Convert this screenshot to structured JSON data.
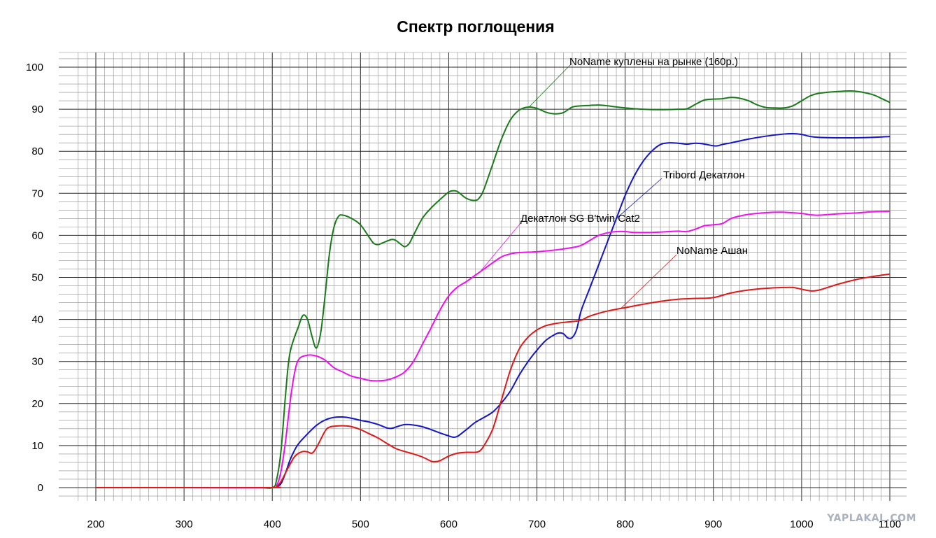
{
  "chart_data": {
    "type": "line",
    "title": "Спектр поглощения",
    "xlabel": "",
    "ylabel": "",
    "xlim": [
      200,
      1100
    ],
    "ylim": [
      0,
      100
    ],
    "grid": true,
    "x_ticks": [
      200,
      300,
      400,
      500,
      600,
      700,
      800,
      900,
      1000,
      1100
    ],
    "y_ticks": [
      0,
      10,
      20,
      30,
      40,
      50,
      60,
      70,
      80,
      90,
      100
    ],
    "series": [
      {
        "name": "NoName куплены на рынке (160р.)",
        "color": "#1a7a1a",
        "points": [
          [
            200,
            0
          ],
          [
            300,
            0
          ],
          [
            380,
            0
          ],
          [
            400,
            0
          ],
          [
            405,
            2
          ],
          [
            410,
            9
          ],
          [
            415,
            22
          ],
          [
            420,
            32
          ],
          [
            430,
            38.5
          ],
          [
            435,
            41
          ],
          [
            440,
            40
          ],
          [
            445,
            36
          ],
          [
            450,
            33.2
          ],
          [
            455,
            37
          ],
          [
            460,
            46
          ],
          [
            465,
            56
          ],
          [
            470,
            62
          ],
          [
            475,
            64.5
          ],
          [
            480,
            64.8
          ],
          [
            490,
            64
          ],
          [
            500,
            62.5
          ],
          [
            510,
            59.5
          ],
          [
            515,
            58.1
          ],
          [
            520,
            57.8
          ],
          [
            525,
            58.2
          ],
          [
            535,
            59
          ],
          [
            540,
            58.8
          ],
          [
            545,
            58
          ],
          [
            550,
            57.3
          ],
          [
            555,
            58
          ],
          [
            560,
            60
          ],
          [
            570,
            64
          ],
          [
            580,
            66.5
          ],
          [
            590,
            68.5
          ],
          [
            600,
            70.3
          ],
          [
            605,
            70.6
          ],
          [
            610,
            70.4
          ],
          [
            620,
            68.8
          ],
          [
            630,
            68.3
          ],
          [
            635,
            69
          ],
          [
            640,
            71
          ],
          [
            650,
            77
          ],
          [
            660,
            83
          ],
          [
            670,
            87.5
          ],
          [
            680,
            89.8
          ],
          [
            690,
            90.5
          ],
          [
            700,
            90.2
          ],
          [
            710,
            89.3
          ],
          [
            720,
            88.9
          ],
          [
            730,
            89.2
          ],
          [
            740,
            90.5
          ],
          [
            750,
            90.8
          ],
          [
            760,
            90.9
          ],
          [
            770,
            91
          ],
          [
            780,
            90.8
          ],
          [
            800,
            90.3
          ],
          [
            820,
            90
          ],
          [
            840,
            89.9
          ],
          [
            860,
            90
          ],
          [
            870,
            90.1
          ],
          [
            880,
            91.2
          ],
          [
            890,
            92.2
          ],
          [
            900,
            92.4
          ],
          [
            910,
            92.5
          ],
          [
            920,
            92.8
          ],
          [
            930,
            92.6
          ],
          [
            940,
            92
          ],
          [
            950,
            91
          ],
          [
            960,
            90.4
          ],
          [
            970,
            90.3
          ],
          [
            980,
            90.3
          ],
          [
            990,
            90.8
          ],
          [
            1000,
            92
          ],
          [
            1010,
            93.2
          ],
          [
            1020,
            93.8
          ],
          [
            1040,
            94.2
          ],
          [
            1060,
            94.3
          ],
          [
            1080,
            93.5
          ],
          [
            1090,
            92.6
          ],
          [
            1100,
            91.6
          ]
        ]
      },
      {
        "name": "Tribord Декатлон",
        "color": "#1414c8",
        "points": [
          [
            200,
            0
          ],
          [
            300,
            0
          ],
          [
            400,
            0
          ],
          [
            405,
            0.2
          ],
          [
            410,
            1
          ],
          [
            415,
            3.5
          ],
          [
            420,
            6.5
          ],
          [
            425,
            8.8
          ],
          [
            430,
            10.5
          ],
          [
            440,
            12.8
          ],
          [
            450,
            14.8
          ],
          [
            460,
            16.1
          ],
          [
            470,
            16.7
          ],
          [
            480,
            16.8
          ],
          [
            490,
            16.5
          ],
          [
            500,
            16
          ],
          [
            510,
            15.6
          ],
          [
            520,
            15
          ],
          [
            530,
            14.2
          ],
          [
            535,
            14.1
          ],
          [
            540,
            14.4
          ],
          [
            550,
            15
          ],
          [
            560,
            14.9
          ],
          [
            570,
            14.5
          ],
          [
            580,
            13.8
          ],
          [
            590,
            13
          ],
          [
            600,
            12.3
          ],
          [
            605,
            12
          ],
          [
            610,
            12.2
          ],
          [
            620,
            13.8
          ],
          [
            630,
            15.5
          ],
          [
            640,
            16.7
          ],
          [
            650,
            18
          ],
          [
            660,
            20.2
          ],
          [
            670,
            23
          ],
          [
            680,
            26.8
          ],
          [
            690,
            30
          ],
          [
            700,
            32.7
          ],
          [
            710,
            35
          ],
          [
            720,
            36.4
          ],
          [
            725,
            36.8
          ],
          [
            730,
            36.6
          ],
          [
            735,
            35.6
          ],
          [
            740,
            35.7
          ],
          [
            745,
            37.6
          ],
          [
            750,
            42
          ],
          [
            760,
            47.5
          ],
          [
            770,
            53
          ],
          [
            780,
            58.5
          ],
          [
            790,
            64
          ],
          [
            800,
            69.5
          ],
          [
            810,
            74
          ],
          [
            820,
            77.5
          ],
          [
            830,
            80
          ],
          [
            840,
            81.6
          ],
          [
            850,
            82
          ],
          [
            860,
            81.9
          ],
          [
            870,
            81.7
          ],
          [
            880,
            81.9
          ],
          [
            890,
            81.7
          ],
          [
            900,
            81.3
          ],
          [
            905,
            81.3
          ],
          [
            910,
            81.6
          ],
          [
            920,
            82
          ],
          [
            940,
            82.9
          ],
          [
            960,
            83.6
          ],
          [
            980,
            84.1
          ],
          [
            990,
            84.2
          ],
          [
            1000,
            84
          ],
          [
            1010,
            83.5
          ],
          [
            1020,
            83.3
          ],
          [
            1040,
            83.2
          ],
          [
            1060,
            83.2
          ],
          [
            1080,
            83.3
          ],
          [
            1100,
            83.5
          ]
        ]
      },
      {
        "name": "Декатлон SG B'twin Cat2",
        "color": "#ee10ee",
        "points": [
          [
            200,
            0
          ],
          [
            300,
            0
          ],
          [
            400,
            0
          ],
          [
            405,
            0.5
          ],
          [
            410,
            4
          ],
          [
            415,
            11
          ],
          [
            420,
            20
          ],
          [
            425,
            27
          ],
          [
            430,
            30.5
          ],
          [
            440,
            31.5
          ],
          [
            450,
            31.3
          ],
          [
            460,
            30.3
          ],
          [
            470,
            28.5
          ],
          [
            480,
            27.5
          ],
          [
            490,
            26.5
          ],
          [
            500,
            26
          ],
          [
            510,
            25.5
          ],
          [
            520,
            25.4
          ],
          [
            530,
            25.6
          ],
          [
            540,
            26.3
          ],
          [
            550,
            27.5
          ],
          [
            560,
            30
          ],
          [
            570,
            34
          ],
          [
            580,
            38
          ],
          [
            590,
            42.2
          ],
          [
            600,
            45.6
          ],
          [
            610,
            47.7
          ],
          [
            620,
            49
          ],
          [
            630,
            50.5
          ],
          [
            640,
            52
          ],
          [
            650,
            53.5
          ],
          [
            660,
            54.9
          ],
          [
            670,
            55.6
          ],
          [
            680,
            55.9
          ],
          [
            700,
            56.1
          ],
          [
            720,
            56.5
          ],
          [
            740,
            57.1
          ],
          [
            750,
            57.6
          ],
          [
            760,
            58.8
          ],
          [
            770,
            60
          ],
          [
            780,
            60.6
          ],
          [
            790,
            60.9
          ],
          [
            800,
            60.9
          ],
          [
            810,
            60.7
          ],
          [
            830,
            60.7
          ],
          [
            850,
            60.9
          ],
          [
            860,
            61
          ],
          [
            870,
            60.9
          ],
          [
            880,
            61.5
          ],
          [
            890,
            62.3
          ],
          [
            900,
            62.5
          ],
          [
            910,
            62.8
          ],
          [
            920,
            64
          ],
          [
            930,
            64.6
          ],
          [
            940,
            65
          ],
          [
            960,
            65.4
          ],
          [
            980,
            65.5
          ],
          [
            1000,
            65.2
          ],
          [
            1010,
            64.9
          ],
          [
            1020,
            64.8
          ],
          [
            1040,
            65.1
          ],
          [
            1060,
            65.3
          ],
          [
            1080,
            65.6
          ],
          [
            1100,
            65.7
          ]
        ]
      },
      {
        "name": "NoName Ашан",
        "color": "#e01818",
        "points": [
          [
            200,
            0
          ],
          [
            300,
            0
          ],
          [
            400,
            0
          ],
          [
            405,
            0.3
          ],
          [
            410,
            1.5
          ],
          [
            415,
            3.5
          ],
          [
            420,
            5.5
          ],
          [
            425,
            7.3
          ],
          [
            430,
            8.2
          ],
          [
            435,
            8.6
          ],
          [
            440,
            8.5
          ],
          [
            445,
            8.2
          ],
          [
            450,
            9.5
          ],
          [
            460,
            13.5
          ],
          [
            465,
            14.4
          ],
          [
            470,
            14.6
          ],
          [
            480,
            14.7
          ],
          [
            490,
            14.5
          ],
          [
            500,
            13.8
          ],
          [
            510,
            12.8
          ],
          [
            520,
            11.8
          ],
          [
            530,
            10.5
          ],
          [
            540,
            9.3
          ],
          [
            550,
            8.6
          ],
          [
            560,
            8
          ],
          [
            570,
            7.3
          ],
          [
            580,
            6.3
          ],
          [
            585,
            6.2
          ],
          [
            590,
            6.4
          ],
          [
            600,
            7.5
          ],
          [
            610,
            8.2
          ],
          [
            620,
            8.4
          ],
          [
            630,
            8.4
          ],
          [
            635,
            8.7
          ],
          [
            640,
            10
          ],
          [
            650,
            14
          ],
          [
            660,
            21
          ],
          [
            670,
            28
          ],
          [
            680,
            33
          ],
          [
            690,
            35.8
          ],
          [
            700,
            37.5
          ],
          [
            710,
            38.5
          ],
          [
            720,
            39
          ],
          [
            730,
            39.3
          ],
          [
            740,
            39.5
          ],
          [
            750,
            39.8
          ],
          [
            760,
            40.8
          ],
          [
            780,
            42
          ],
          [
            800,
            42.8
          ],
          [
            820,
            43.6
          ],
          [
            840,
            44.3
          ],
          [
            860,
            44.8
          ],
          [
            880,
            45
          ],
          [
            900,
            45.2
          ],
          [
            920,
            46.3
          ],
          [
            940,
            47
          ],
          [
            960,
            47.4
          ],
          [
            980,
            47.6
          ],
          [
            990,
            47.6
          ],
          [
            1000,
            47.2
          ],
          [
            1010,
            46.8
          ],
          [
            1020,
            47
          ],
          [
            1040,
            48.3
          ],
          [
            1060,
            49.4
          ],
          [
            1080,
            50.2
          ],
          [
            1100,
            50.8
          ]
        ]
      }
    ],
    "annotations": [
      {
        "text": "NoName куплены на рынке (160р.)",
        "series": 0,
        "anchor": [
          690,
          90.3
        ]
      },
      {
        "text": "Tribord Декатлон",
        "series": 1,
        "anchor": [
          790,
          64
        ]
      },
      {
        "text": "Декатлон SG B'twin Cat2",
        "series": 2,
        "anchor": [
          635,
          51.2
        ]
      },
      {
        "text": "NoName Ашан",
        "series": 3,
        "anchor": [
          795,
          42.6
        ]
      }
    ],
    "watermark": "YAPLAKAL.COM"
  }
}
